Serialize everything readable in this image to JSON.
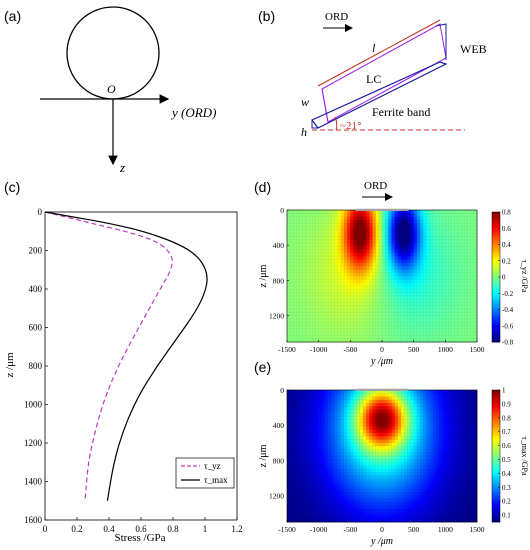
{
  "panels": {
    "a": {
      "label": "(a)",
      "origin": "O",
      "y_axis": "y (ORD)",
      "z_axis": "z"
    },
    "b": {
      "label": "(b)",
      "ord": "ORD",
      "l": "l",
      "w": "w",
      "h": "h",
      "lc": "LC",
      "web": "WEB",
      "ferrite": "Ferrite band",
      "angle": "~21°"
    },
    "c": {
      "label": "(c)",
      "xlabel": "Stress /GPa",
      "ylabel": "z /μm",
      "x_ticks": [
        "0",
        "0.2",
        "0.4",
        "0.6",
        "0.8",
        "1",
        "1.2"
      ],
      "y_ticks": [
        "0",
        "200",
        "400",
        "600",
        "800",
        "1000",
        "1200",
        "1400",
        "1600"
      ],
      "legend": [
        "τ_yz",
        "τ_max"
      ]
    },
    "d": {
      "label": "(d)",
      "ord": "ORD",
      "xlabel": "y /μm",
      "ylabel": "z /μm",
      "x_ticks": [
        "-1500",
        "-1000",
        "-500",
        "0",
        "500",
        "1000",
        "1500"
      ],
      "y_ticks": [
        "0",
        "400",
        "800",
        "1200"
      ],
      "cbar_ticks": [
        "0.8",
        "0.6",
        "0.4",
        "0.2",
        "0",
        "-0.2",
        "-0.4",
        "-0.6",
        "-0.8"
      ],
      "cbar_label": "τ_yz /GPa"
    },
    "e": {
      "label": "(e)",
      "xlabel": "y /μm",
      "ylabel": "z /μm",
      "x_ticks": [
        "-1500",
        "-1000",
        "-500",
        "0",
        "500",
        "1000",
        "1500"
      ],
      "y_ticks": [
        "0",
        "400",
        "800",
        "1200"
      ],
      "cbar_ticks": [
        "1",
        "0.9",
        "0.8",
        "0.7",
        "0.6",
        "0.5",
        "0.4",
        "0.3",
        "0.2",
        "0.1"
      ],
      "cbar_label": "τ_max /GPa"
    }
  },
  "colors": {
    "tau_yz": "#c03cc0",
    "tau_max": "#000000",
    "ferrite_band": "#1a1aa0",
    "lc": "#a020f0",
    "angle": "#c03020"
  },
  "chart_data": [
    {
      "type": "line",
      "title": "",
      "xlabel": "Stress /GPa",
      "ylabel": "z /μm",
      "xlim": [
        0,
        1.2
      ],
      "ylim": [
        1600,
        0
      ],
      "series": [
        {
          "name": "τ_yz",
          "style": "dashed",
          "points": [
            [
              0,
              0
            ],
            [
              0.1,
              20
            ],
            [
              0.3,
              60
            ],
            [
              0.55,
              110
            ],
            [
              0.72,
              160
            ],
            [
              0.8,
              230
            ],
            [
              0.79,
              300
            ],
            [
              0.72,
              400
            ],
            [
              0.62,
              550
            ],
            [
              0.52,
              700
            ],
            [
              0.43,
              850
            ],
            [
              0.36,
              1000
            ],
            [
              0.31,
              1150
            ],
            [
              0.27,
              1300
            ],
            [
              0.25,
              1500
            ]
          ]
        },
        {
          "name": "τ_max",
          "style": "solid",
          "points": [
            [
              0,
              0
            ],
            [
              0.1,
              15
            ],
            [
              0.35,
              50
            ],
            [
              0.62,
              100
            ],
            [
              0.85,
              170
            ],
            [
              0.97,
              240
            ],
            [
              1.02,
              330
            ],
            [
              1.0,
              420
            ],
            [
              0.94,
              520
            ],
            [
              0.83,
              650
            ],
            [
              0.7,
              800
            ],
            [
              0.58,
              960
            ],
            [
              0.49,
              1130
            ],
            [
              0.43,
              1300
            ],
            [
              0.39,
              1500
            ]
          ]
        }
      ]
    },
    {
      "type": "heatmap",
      "title": "",
      "xlabel": "y /μm",
      "ylabel": "z /μm",
      "xlim": [
        -1500,
        1500
      ],
      "ylim": [
        1500,
        0
      ],
      "value_range": [
        -0.8,
        0.8
      ],
      "description_of_field": "τ_yz: positive lobe below left contact edge (~-350, 250), negative lobe below right edge (~350, 250)"
    },
    {
      "type": "heatmap",
      "title": "",
      "xlabel": "y /μm",
      "ylabel": "z /μm",
      "xlim": [
        -1500,
        1500
      ],
      "ylim": [
        1500,
        0
      ],
      "value_range": [
        0.05,
        1.0
      ],
      "description_of_field": "τ_max: maximum ~1 at (0, 300), decaying outward"
    }
  ]
}
